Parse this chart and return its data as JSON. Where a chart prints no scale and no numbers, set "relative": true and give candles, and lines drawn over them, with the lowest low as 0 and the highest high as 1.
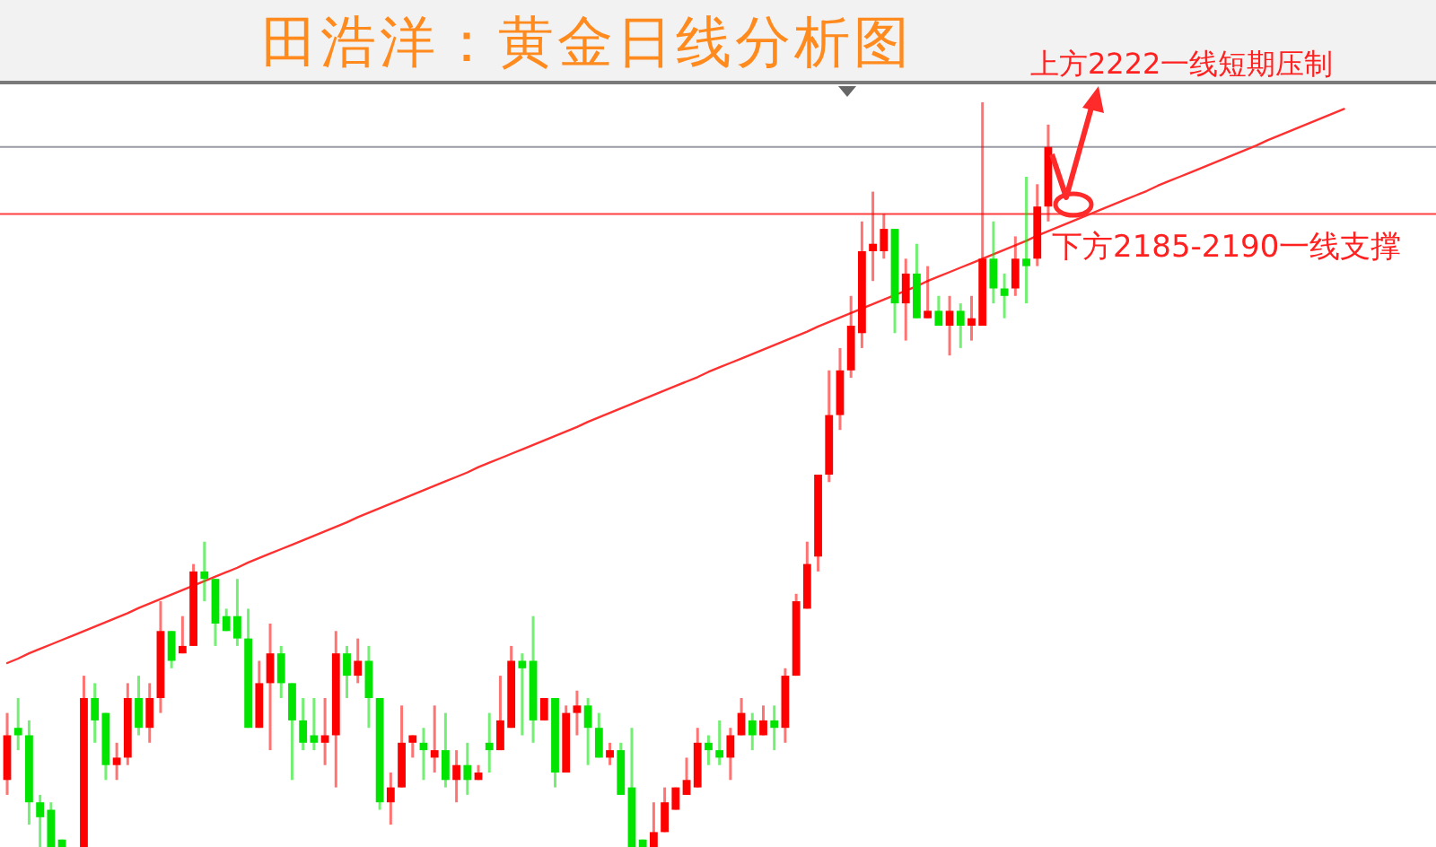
{
  "chart_data": {
    "type": "candlestick",
    "title": "田浩洋：黄金日线分析图",
    "relative": true,
    "annotations": [
      "上方2222一线短期压制",
      "下方2185-2190一线支撑"
    ],
    "categories": [
      null,
      null,
      null,
      null,
      null,
      null,
      null,
      null,
      null,
      null,
      null,
      null,
      null,
      null,
      null,
      null,
      null,
      null,
      null,
      null,
      null,
      null,
      null,
      null,
      null,
      null,
      null,
      null,
      null,
      null,
      null,
      null,
      null,
      null,
      null,
      null,
      null,
      null,
      null,
      null,
      null,
      null,
      null,
      null,
      null,
      null,
      null,
      null,
      null,
      null,
      null,
      null,
      null,
      null,
      null,
      null,
      null,
      null,
      null,
      null,
      null,
      null,
      null,
      null,
      null,
      null,
      null,
      null,
      null,
      null,
      null,
      null,
      null,
      null,
      null,
      null,
      null,
      null,
      null,
      null,
      null,
      null,
      null,
      null,
      null,
      null,
      null,
      null,
      null,
      null,
      null,
      null,
      null,
      null,
      null,
      null,
      null,
      null,
      null,
      null,
      null,
      null,
      null,
      null,
      null,
      null,
      null,
      null,
      null,
      null,
      null,
      null,
      null,
      null,
      null,
      null,
      null,
      null,
      null,
      null,
      null,
      null,
      null
    ],
    "ohlc": [
      [
        0.09,
        0.18,
        0.07,
        0.15
      ],
      [
        0.16,
        0.2,
        0.13,
        0.15
      ],
      [
        0.15,
        0.17,
        0.03,
        0.06
      ],
      [
        0.06,
        0.07,
        0,
        0.04
      ],
      [
        0.05,
        0.06,
        0,
        0
      ],
      [
        0.01,
        0.01,
        0,
        0
      ],
      null,
      [
        0,
        0.23,
        0,
        0.2
      ],
      [
        0.2,
        0.22,
        0.14,
        0.17
      ],
      [
        0.18,
        0.18,
        0.09,
        0.11
      ],
      [
        0.11,
        0.14,
        0.09,
        0.12
      ],
      [
        0.12,
        0.22,
        0.11,
        0.2
      ],
      [
        0.2,
        0.23,
        0.15,
        0.16
      ],
      [
        0.16,
        0.22,
        0.14,
        0.2
      ],
      [
        0.2,
        0.33,
        0.18,
        0.29
      ],
      [
        0.29,
        0.29,
        0.24,
        0.25
      ],
      [
        0.26,
        0.31,
        0.26,
        0.27
      ],
      [
        0.27,
        0.38,
        0.27,
        0.37
      ],
      [
        0.37,
        0.41,
        0.33,
        0.36
      ],
      [
        0.36,
        0.36,
        0.27,
        0.3
      ],
      [
        0.31,
        0.32,
        0.29,
        0.29
      ],
      [
        0.31,
        0.36,
        0.27,
        0.28
      ],
      [
        0.28,
        0.32,
        0.16,
        0.16
      ],
      [
        0.16,
        0.25,
        0.16,
        0.22
      ],
      [
        0.22,
        0.3,
        0.13,
        0.26
      ],
      [
        0.26,
        0.27,
        0.2,
        0.22
      ],
      [
        0.22,
        0.22,
        0.09,
        0.17
      ],
      [
        0.17,
        0.2,
        0.13,
        0.14
      ],
      [
        0.15,
        0.2,
        0.13,
        0.14
      ],
      [
        0.14,
        0.2,
        0.11,
        0.15
      ],
      [
        0.15,
        0.29,
        0.08,
        0.26
      ],
      [
        0.26,
        0.27,
        0.2,
        0.23
      ],
      [
        0.23,
        0.28,
        0.22,
        0.25
      ],
      [
        0.25,
        0.27,
        0.16,
        0.2
      ],
      [
        0.2,
        0.2,
        0.05,
        0.06
      ],
      [
        0.06,
        0.1,
        0.03,
        0.08
      ],
      [
        0.08,
        0.19,
        0.08,
        0.14
      ],
      [
        0.14,
        0.15,
        0.12,
        0.15
      ],
      [
        0.14,
        0.16,
        0.09,
        0.13
      ],
      [
        0.12,
        0.19,
        0.1,
        0.13
      ],
      [
        0.13,
        0.18,
        0.08,
        0.09
      ],
      [
        0.09,
        0.13,
        0.06,
        0.11
      ],
      [
        0.11,
        0.14,
        0.07,
        0.09
      ],
      [
        0.09,
        0.11,
        0.09,
        0.1
      ],
      [
        0.14,
        0.18,
        0.1,
        0.13
      ],
      [
        0.13,
        0.23,
        0.13,
        0.17
      ],
      [
        0.16,
        0.27,
        0.16,
        0.25
      ],
      [
        0.25,
        0.26,
        0.15,
        0.24
      ],
      [
        0.25,
        0.31,
        0.14,
        0.17
      ],
      [
        0.17,
        0.2,
        0.17,
        0.2
      ],
      [
        0.2,
        0.2,
        0.08,
        0.1
      ],
      [
        0.1,
        0.19,
        0.1,
        0.18
      ],
      [
        0.18,
        0.21,
        0.15,
        0.19
      ],
      [
        0.19,
        0.2,
        0.11,
        0.16
      ],
      [
        0.16,
        0.18,
        0.12,
        0.12
      ],
      [
        0.12,
        0.14,
        0.11,
        0.13
      ],
      [
        0.13,
        0.14,
        0.07,
        0.07
      ],
      [
        0.08,
        0.16,
        0,
        0
      ],
      [
        0.01,
        0.01,
        0,
        0
      ],
      [
        0,
        0.06,
        0,
        0.02
      ],
      [
        0.02,
        0.08,
        0.02,
        0.06
      ],
      [
        0.05,
        0.08,
        0.05,
        0.08
      ],
      [
        0.07,
        0.12,
        0.07,
        0.09
      ],
      [
        0.08,
        0.16,
        0.08,
        0.14
      ],
      [
        0.14,
        0.15,
        0.11,
        0.13
      ],
      [
        0.13,
        0.17,
        0.11,
        0.12
      ],
      [
        0.12,
        0.16,
        0.09,
        0.15
      ],
      [
        0.15,
        0.2,
        0.15,
        0.18
      ],
      [
        0.17,
        0.18,
        0.13,
        0.15
      ],
      [
        0.15,
        0.19,
        0.15,
        0.17
      ],
      [
        0.17,
        0.19,
        0.13,
        0.16
      ],
      [
        0.16,
        0.24,
        0.14,
        0.23
      ],
      [
        0.23,
        0.34,
        0.23,
        0.33
      ],
      [
        0.32,
        0.41,
        0.32,
        0.38
      ],
      [
        0.39,
        0.5,
        0.37,
        0.5
      ],
      [
        0.5,
        0.64,
        0.49,
        0.58
      ],
      [
        0.58,
        0.67,
        0.56,
        0.64
      ],
      [
        0.64,
        0.74,
        0.63,
        0.7
      ],
      [
        0.69,
        0.84,
        0.67,
        0.8
      ],
      [
        0.8,
        0.88,
        0.76,
        0.81
      ],
      [
        0.8,
        0.85,
        0.79,
        0.83
      ],
      [
        0.83,
        0.83,
        0.69,
        0.73
      ],
      [
        0.73,
        0.79,
        0.68,
        0.77
      ],
      [
        0.77,
        0.81,
        0.71,
        0.71
      ],
      [
        0.71,
        0.78,
        0.71,
        0.72
      ],
      [
        0.72,
        0.74,
        0.7,
        0.7
      ],
      [
        0.7,
        0.74,
        0.66,
        0.72
      ],
      [
        0.72,
        0.73,
        0.67,
        0.7
      ],
      [
        0.7,
        0.74,
        0.68,
        0.71
      ],
      [
        0.7,
        1,
        0.7,
        0.79
      ],
      [
        0.79,
        0.84,
        0.73,
        0.75
      ],
      [
        0.75,
        0.77,
        0.71,
        0.74
      ],
      [
        0.75,
        0.82,
        0.74,
        0.79
      ],
      [
        0.79,
        0.9,
        0.73,
        0.78
      ],
      [
        0.79,
        0.89,
        0.78,
        0.86
      ],
      [
        0.86,
        0.97,
        0.84,
        0.94
      ],
      null,
      null,
      null,
      null,
      null,
      null,
      null,
      null,
      null,
      null,
      null,
      null,
      null,
      null,
      null,
      null,
      null,
      null,
      null,
      null,
      null,
      null,
      null,
      null,
      null,
      null,
      null
    ],
    "colors": [
      "#ff0000",
      "#00e400",
      "#00e400",
      "#00e400",
      "#00e400",
      "#00e400",
      null,
      "#ff0000",
      "#00e400",
      "#00e400",
      "#ff0000",
      "#ff0000",
      "#00e400",
      "#ff0000",
      "#ff0000",
      "#00e400",
      "#ff0000",
      "#ff0000",
      "#00e400",
      "#00e400",
      "#00e400",
      "#00e400",
      "#00e400",
      "#ff0000",
      "#ff0000",
      "#00e400",
      "#00e400",
      "#00e400",
      "#00e400",
      "#ff0000",
      "#ff0000",
      "#00e400",
      "#ff0000",
      "#00e400",
      "#00e400",
      "#ff0000",
      "#ff0000",
      "#ff0000",
      "#00e400",
      "#ff0000",
      "#00e400",
      "#ff0000",
      "#00e400",
      "#ff0000",
      "#00e400",
      "#ff0000",
      "#ff0000",
      "#00e400",
      "#00e400",
      "#ff0000",
      "#00e400",
      "#ff0000",
      "#ff0000",
      "#00e400",
      "#00e400",
      "#ff0000",
      "#00e400",
      "#00e400",
      "#00e400",
      "#ff0000",
      "#ff0000",
      "#ff0000",
      "#ff0000",
      "#ff0000",
      "#00e400",
      "#00e400",
      "#ff0000",
      "#ff0000",
      "#00e400",
      "#ff0000",
      "#00e400",
      "#ff0000",
      "#ff0000",
      "#ff0000",
      "#ff0000",
      "#ff0000",
      "#ff0000",
      "#ff0000",
      "#ff0000",
      "#ff0000",
      "#ff0000",
      "#00e400",
      "#ff0000",
      "#00e400",
      "#ff0000",
      "#00e400",
      "#ff0000",
      "#00e400",
      "#ff0000",
      "#ff0000",
      "#00e400",
      "#00e400",
      "#ff0000",
      "#00e400",
      "#ff0000",
      "#ff0000",
      null,
      null,
      null,
      null,
      null,
      null,
      null,
      null,
      null,
      null,
      null,
      null,
      null,
      null,
      null,
      null,
      null,
      null,
      null,
      null,
      null,
      null,
      null,
      null,
      null,
      null,
      null
    ],
    "series": [
      {
        "type": "line",
        "color": "#ff3030",
        "values": [
          0.247,
          0.253,
          0.26,
          0.266,
          0.272,
          0.278,
          0.284,
          0.29,
          0.296,
          0.302,
          0.308,
          0.314,
          0.321,
          0.327,
          0.333,
          0.339,
          0.345,
          0.351,
          0.357,
          0.363,
          0.369,
          0.375,
          0.382,
          0.388,
          0.394,
          0.4,
          0.406,
          0.412,
          0.418,
          0.424,
          0.43,
          0.436,
          0.443,
          0.449,
          0.455,
          0.461,
          0.467,
          0.473,
          0.479,
          0.485,
          0.491,
          0.497,
          0.503,
          0.51,
          0.516,
          0.522,
          0.528,
          0.534,
          0.54,
          0.546,
          0.552,
          0.558,
          0.564,
          0.571,
          0.577,
          0.583,
          0.589,
          0.595,
          0.601,
          0.607,
          0.613,
          0.619,
          0.625,
          0.631,
          0.638,
          0.644,
          0.65,
          0.656,
          0.662,
          0.668,
          0.674,
          0.68,
          0.686,
          0.692,
          0.699,
          0.705,
          0.711,
          0.717,
          0.723,
          0.729,
          0.735,
          0.741,
          0.747,
          0.753,
          0.76,
          0.766,
          0.772,
          0.778,
          0.784,
          0.79,
          0.796,
          0.802,
          0.808,
          0.814,
          0.821,
          0.827,
          0.833,
          0.839,
          0.845,
          0.851,
          0.857,
          0.863,
          0.869,
          0.875,
          0.881,
          0.888,
          0.894,
          0.9,
          0.906,
          0.912,
          0.918,
          0.924,
          0.93,
          0.936,
          0.942,
          0.949,
          0.955,
          0.961,
          0.967,
          0.973,
          0.979,
          0.985,
          0.991
        ]
      }
    ],
    "ref_lines": [
      {
        "axis": "y",
        "value": 0.94,
        "color": "#9a9aa6"
      },
      {
        "axis": "y",
        "value": 0.85,
        "color": "#ff4040"
      }
    ]
  }
}
